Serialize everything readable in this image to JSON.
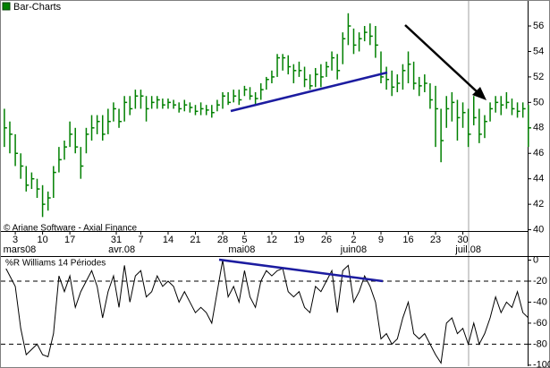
{
  "chart_data": [
    {
      "type": "hlc",
      "title": "Bar-Charts",
      "note": "© Ariane Software - Axial Finance",
      "color": "#008000",
      "xlim": [
        -0.8,
        96.2
      ],
      "ylim": [
        39.9,
        57.9
      ],
      "yticks": [
        40,
        42,
        44,
        46,
        48,
        50,
        52,
        54,
        56
      ],
      "xticks": [
        {
          "value": 2,
          "label": "3"
        },
        {
          "value": 7,
          "label": "10"
        },
        {
          "value": 12,
          "label": "17"
        },
        {
          "value": 20.5,
          "label": "31"
        },
        {
          "value": 25,
          "label": "7"
        },
        {
          "value": 30,
          "label": "14"
        },
        {
          "value": 35,
          "label": "21"
        },
        {
          "value": 40,
          "label": "28"
        },
        {
          "value": 44,
          "label": "5"
        },
        {
          "value": 49,
          "label": "12"
        },
        {
          "value": 54,
          "label": "19"
        },
        {
          "value": 59,
          "label": "26"
        },
        {
          "value": 64,
          "label": "2"
        },
        {
          "value": 69,
          "label": "9"
        },
        {
          "value": 74,
          "label": "16"
        },
        {
          "value": 79,
          "label": "23"
        },
        {
          "value": 84,
          "label": "30"
        }
      ],
      "month_ticks": [
        {
          "value": 2.8,
          "label": "mars08"
        },
        {
          "value": 21.5,
          "label": "avr.08"
        },
        {
          "value": 43.5,
          "label": "mai08"
        },
        {
          "value": 64,
          "label": "juin08"
        },
        {
          "value": 85,
          "label": "juil.08"
        }
      ],
      "x": [
        0,
        1,
        2,
        3,
        4,
        5,
        6,
        7,
        8,
        9,
        10,
        11,
        12,
        13,
        14,
        15,
        16,
        17,
        18,
        19,
        20,
        21,
        22,
        23,
        24,
        25,
        26,
        27,
        28,
        29,
        30,
        31,
        32,
        33,
        34,
        35,
        36,
        37,
        38,
        39,
        40,
        41,
        42,
        43,
        44,
        45,
        46,
        47,
        48,
        49,
        50,
        51,
        52,
        53,
        54,
        55,
        56,
        57,
        58,
        59,
        60,
        61,
        62,
        63,
        64,
        65,
        66,
        67,
        68,
        69,
        70,
        71,
        72,
        73,
        74,
        75,
        76,
        77,
        78,
        79,
        80,
        81,
        82,
        83,
        84,
        85,
        86,
        87,
        88,
        89,
        90,
        91,
        92,
        93,
        94,
        95,
        96
      ],
      "high": [
        49.5,
        48.5,
        47.5,
        46,
        45,
        44.5,
        44,
        43.5,
        43,
        45,
        46.5,
        47,
        48.5,
        48,
        46.5,
        48,
        49,
        49,
        49,
        49.5,
        50,
        49.5,
        50.5,
        50.5,
        51,
        51,
        50.5,
        50.5,
        50.5,
        50.3,
        50.3,
        50.2,
        50,
        50.2,
        50,
        49.8,
        50,
        49.8,
        49.8,
        50.2,
        50.8,
        50.8,
        51,
        51,
        51.3,
        51.2,
        50.8,
        51.5,
        52,
        52.5,
        53.8,
        53.8,
        53.7,
        53,
        53.2,
        52.8,
        52.2,
        52.7,
        53,
        53.2,
        54,
        53.8,
        55.5,
        57,
        55.8,
        55.5,
        56,
        56.2,
        56,
        54,
        52.8,
        52.5,
        52.2,
        53,
        54,
        53.2,
        52,
        52.2,
        51.5,
        51.3,
        49.5,
        50.5,
        50.8,
        50.2,
        50,
        49.5,
        50.5,
        49.5,
        49,
        50,
        50.5,
        50.5,
        50.8,
        50.3,
        50,
        50,
        49.8
      ],
      "low": [
        46.5,
        46,
        45,
        44,
        43,
        43.2,
        42.5,
        41,
        41.5,
        42.5,
        44.5,
        45.5,
        46.5,
        46,
        44,
        46,
        47,
        47.5,
        47,
        47.5,
        48.5,
        48,
        48.5,
        49,
        49.5,
        49.5,
        48.5,
        49.5,
        49.5,
        49.5,
        49.5,
        49.5,
        49.2,
        49.3,
        49.2,
        49,
        49,
        49,
        48.8,
        49.3,
        49.5,
        49.8,
        50,
        49.8,
        50.5,
        50.2,
        49.8,
        50.2,
        51,
        51.5,
        52,
        52.5,
        52.2,
        51.5,
        52,
        51.2,
        51,
        51.2,
        51.2,
        52,
        52.5,
        51.8,
        53,
        54.5,
        53.8,
        54,
        54.8,
        54.5,
        53.5,
        51.5,
        51,
        50.5,
        50.8,
        51,
        51.5,
        51,
        50.5,
        50.8,
        49.5,
        46.5,
        45.3,
        48,
        48.5,
        47,
        48,
        46.5,
        48.2,
        46.8,
        47.2,
        48.5,
        49.2,
        49,
        49.5,
        49,
        48.8,
        48.8,
        46.5
      ],
      "close": [
        48,
        47.5,
        46,
        45,
        43.5,
        44,
        43.2,
        42,
        42.5,
        44.5,
        45.5,
        46.5,
        47.5,
        46.5,
        45,
        47.5,
        48,
        48.5,
        47.5,
        48.5,
        49.5,
        48.5,
        50,
        49.5,
        50.5,
        50.5,
        49.5,
        50,
        50.2,
        49.8,
        50,
        49.8,
        49.5,
        49.8,
        49.6,
        49.3,
        49.5,
        49.4,
        49.2,
        49.8,
        50.5,
        50,
        50.5,
        50.2,
        51,
        50.5,
        50.3,
        51,
        51.8,
        52,
        53.5,
        53.5,
        52.8,
        52.5,
        52.5,
        51.8,
        51.3,
        52.2,
        52,
        52.8,
        53.5,
        52.5,
        55,
        56,
        54.5,
        55,
        55.5,
        55.2,
        54.5,
        52,
        51.8,
        51.2,
        51.5,
        52.5,
        53,
        51.5,
        51.3,
        51.5,
        50.2,
        49.5,
        47,
        49.5,
        50,
        48.8,
        49.2,
        47.5,
        48.8,
        47.5,
        48.5,
        49.5,
        50,
        49.8,
        50,
        49.5,
        49.3,
        49.5,
        48
      ]
    },
    {
      "type": "line",
      "title": "%R Williams 14 Périodes",
      "color": "#000000",
      "ylim": [
        -101,
        3
      ],
      "yticks": [
        0,
        -20,
        -40,
        -60,
        -80,
        -100
      ],
      "levels": [
        -20,
        -80
      ],
      "values": [
        -5,
        -15,
        -25,
        -65,
        -90,
        -85,
        -80,
        -90,
        -92,
        -70,
        -15,
        -30,
        -15,
        -45,
        -30,
        -20,
        -10,
        -25,
        -55,
        -30,
        -15,
        -45,
        -5,
        -40,
        -15,
        -10,
        -35,
        -30,
        -15,
        -25,
        -20,
        -25,
        -40,
        -30,
        -40,
        -50,
        -45,
        -50,
        -60,
        -30,
        0,
        -35,
        -25,
        -40,
        -10,
        -35,
        -45,
        -20,
        -10,
        -15,
        -10,
        -8,
        -30,
        -35,
        -30,
        -45,
        -50,
        -25,
        -30,
        -20,
        -10,
        -50,
        -10,
        -5,
        -40,
        -30,
        -15,
        -25,
        -40,
        -75,
        -70,
        -80,
        -75,
        -55,
        -40,
        -70,
        -75,
        -70,
        -80,
        -90,
        -98,
        -60,
        -55,
        -70,
        -65,
        -80,
        -60,
        -80,
        -70,
        -55,
        -35,
        -50,
        -40,
        -45,
        -30,
        -50,
        -55
      ]
    }
  ]
}
